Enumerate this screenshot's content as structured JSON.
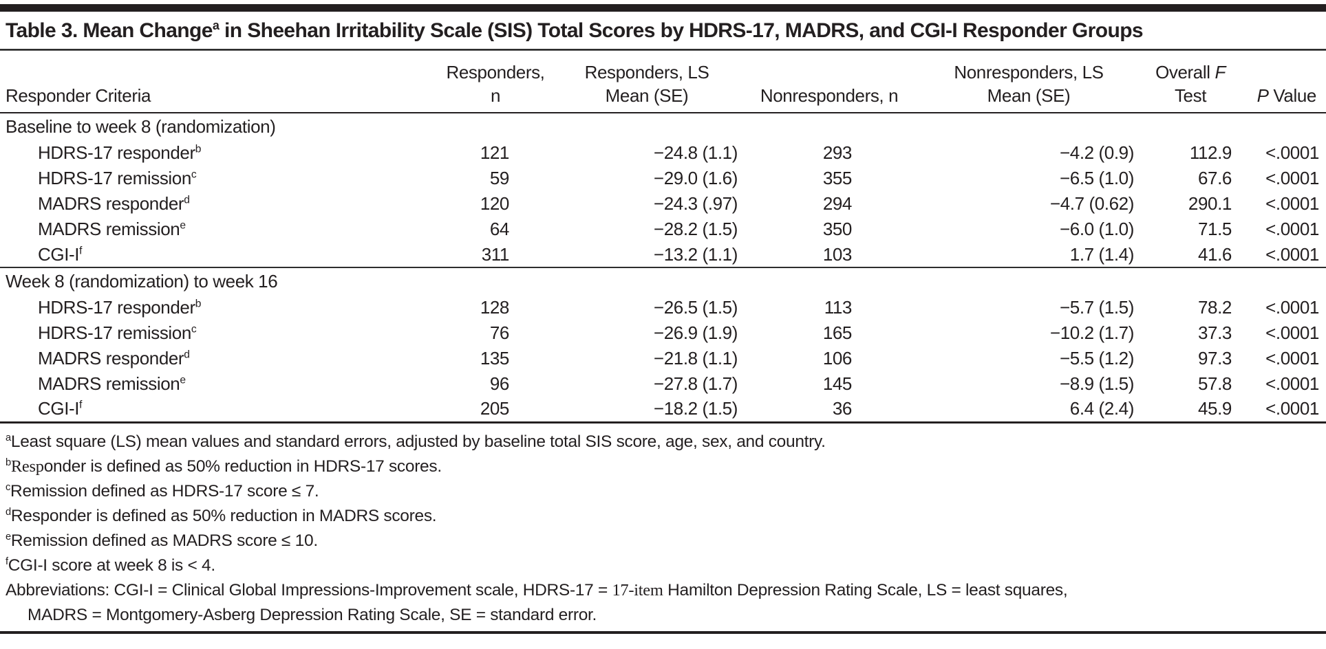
{
  "colors": {
    "text": "#231f20",
    "rule": "#231f20",
    "background": "#ffffff"
  },
  "title": {
    "text_before_sup": "Table 3. Mean Change",
    "footnote_marker": "a",
    "text_after_sup": " in Sheehan Irritability Scale (SIS) Total Scores by HDRS-17, MADRS, and CGI-I Responder Groups"
  },
  "headers": {
    "criteria": "Responder Criteria",
    "responders_n": "Responders, n",
    "responders_ls_line1": "Responders, LS",
    "responders_ls_line2": "Mean (SE)",
    "nonresponders_n": "Nonresponders, n",
    "nonresponders_ls_line1": "Nonresponders, LS",
    "nonresponders_ls_line2": "Mean (SE)",
    "overall_f_line1_text": "Overall ",
    "overall_f_line1_italic": "F",
    "overall_f_line2": "Test",
    "p_italic": "P",
    "p_text": " Value"
  },
  "sections": [
    {
      "label": "Baseline to week 8 (randomization)",
      "rows": [
        {
          "criteria": "HDRS-17 responder",
          "sup": "b",
          "responders_n": "121",
          "responders_ls_mean_se": "−24.8 (1.1)",
          "nonresponders_n": "293",
          "nonresponders_ls_mean_se": "−4.2 (0.9)",
          "overall_f": "112.9",
          "p_value": "<.0001"
        },
        {
          "criteria": "HDRS-17 remission",
          "sup": "c",
          "responders_n": "59",
          "responders_ls_mean_se": "−29.0 (1.6)",
          "nonresponders_n": "355",
          "nonresponders_ls_mean_se": "−6.5 (1.0)",
          "overall_f": "67.6",
          "p_value": "<.0001"
        },
        {
          "criteria": "MADRS responder",
          "sup": "d",
          "responders_n": "120",
          "responders_ls_mean_se": "−24.3 (.97)",
          "nonresponders_n": "294",
          "nonresponders_ls_mean_se": "−4.7 (0.62)",
          "overall_f": "290.1",
          "p_value": "<.0001"
        },
        {
          "criteria": "MADRS remission",
          "sup": "e",
          "responders_n": "64",
          "responders_ls_mean_se": "−28.2 (1.5)",
          "nonresponders_n": "350",
          "nonresponders_ls_mean_se": "−6.0 (1.0)",
          "overall_f": "71.5",
          "p_value": "<.0001"
        },
        {
          "criteria": "CGI-I",
          "sup": "f",
          "responders_n": "311",
          "responders_ls_mean_se": "−13.2 (1.1)",
          "nonresponders_n": "103",
          "nonresponders_ls_mean_se": "1.7 (1.4)",
          "overall_f": "41.6",
          "p_value": "<.0001"
        }
      ]
    },
    {
      "label": "Week 8 (randomization) to week 16",
      "rows": [
        {
          "criteria": "HDRS-17 responder",
          "sup": "b",
          "responders_n": "128",
          "responders_ls_mean_se": "−26.5 (1.5)",
          "nonresponders_n": "113",
          "nonresponders_ls_mean_se": "−5.7 (1.5)",
          "overall_f": "78.2",
          "p_value": "<.0001"
        },
        {
          "criteria": "HDRS-17 remission",
          "sup": "c",
          "responders_n": "76",
          "responders_ls_mean_se": "−26.9 (1.9)",
          "nonresponders_n": "165",
          "nonresponders_ls_mean_se": "−10.2 (1.7)",
          "overall_f": "37.3",
          "p_value": "<.0001"
        },
        {
          "criteria": "MADRS responder",
          "sup": "d",
          "responders_n": "135",
          "responders_ls_mean_se": "−21.8 (1.1)",
          "nonresponders_n": "106",
          "nonresponders_ls_mean_se": "−5.5 (1.2)",
          "overall_f": "97.3",
          "p_value": "<.0001"
        },
        {
          "criteria": "MADRS remission",
          "sup": "e",
          "responders_n": "96",
          "responders_ls_mean_se": "−27.8 (1.7)",
          "nonresponders_n": "145",
          "nonresponders_ls_mean_se": "−8.9 (1.5)",
          "overall_f": "57.8",
          "p_value": "<.0001"
        },
        {
          "criteria": "CGI-I",
          "sup": "f",
          "responders_n": "205",
          "responders_ls_mean_se": "−18.2 (1.5)",
          "nonresponders_n": "36",
          "nonresponders_ls_mean_se": "6.4 (2.4)",
          "overall_f": "45.9",
          "p_value": "<.0001"
        }
      ]
    }
  ],
  "footnotes": [
    {
      "marker": "a",
      "serif_text": "",
      "text": "Least square (LS) mean values and standard errors, adjusted by baseline total SIS score, age, sex, and country."
    },
    {
      "marker": "b",
      "serif_text": "Resp",
      "text": "onder is defined as 50% reduction in HDRS-17 scores."
    },
    {
      "marker": "c",
      "serif_text": "",
      "text": "Remission defined as HDRS-17 score ≤ 7."
    },
    {
      "marker": "d",
      "serif_text": "",
      "text": "Responder is defined as 50% reduction in MADRS scores."
    },
    {
      "marker": "e",
      "serif_text": "",
      "text": "Remission defined as MADRS score ≤ 10."
    },
    {
      "marker": "f",
      "serif_text": "",
      "text": "CGI-I score at week 8 is < 4."
    }
  ],
  "abbreviations": {
    "line1_text": "Abbreviations: CGI-I = Clinical Global Impressions-Improvement scale, HDRS-17 = ",
    "line1_serif": "17-item",
    "line1_after": " Hamilton Depression Rating Scale, LS = least squares,",
    "line2_text": "MADRS = Montgomery-Asberg Depression Rating Scale, SE = standard error."
  }
}
